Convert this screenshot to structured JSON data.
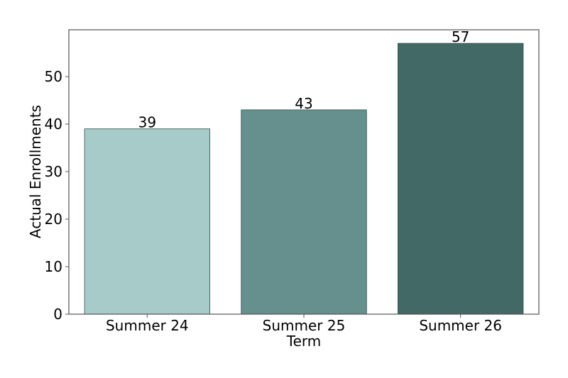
{
  "chart_data": {
    "type": "bar",
    "title": "",
    "xlabel": "Term",
    "ylabel": "Actual Enrollments",
    "categories": [
      "Summer 24",
      "Summer 25",
      "Summer 26"
    ],
    "values": [
      39,
      43,
      57
    ],
    "data_labels": [
      "39",
      "43",
      "57"
    ],
    "bar_colors": [
      "#a6cbc9",
      "#66908d",
      "#426966"
    ],
    "bar_edge_color": "#2f4f4d",
    "yticks": [
      0,
      10,
      20,
      30,
      40,
      50
    ],
    "ytick_labels": [
      "0",
      "10",
      "20",
      "30",
      "40",
      "50"
    ],
    "ylim": [
      0,
      59.85
    ],
    "grid": false,
    "legend": "none"
  }
}
